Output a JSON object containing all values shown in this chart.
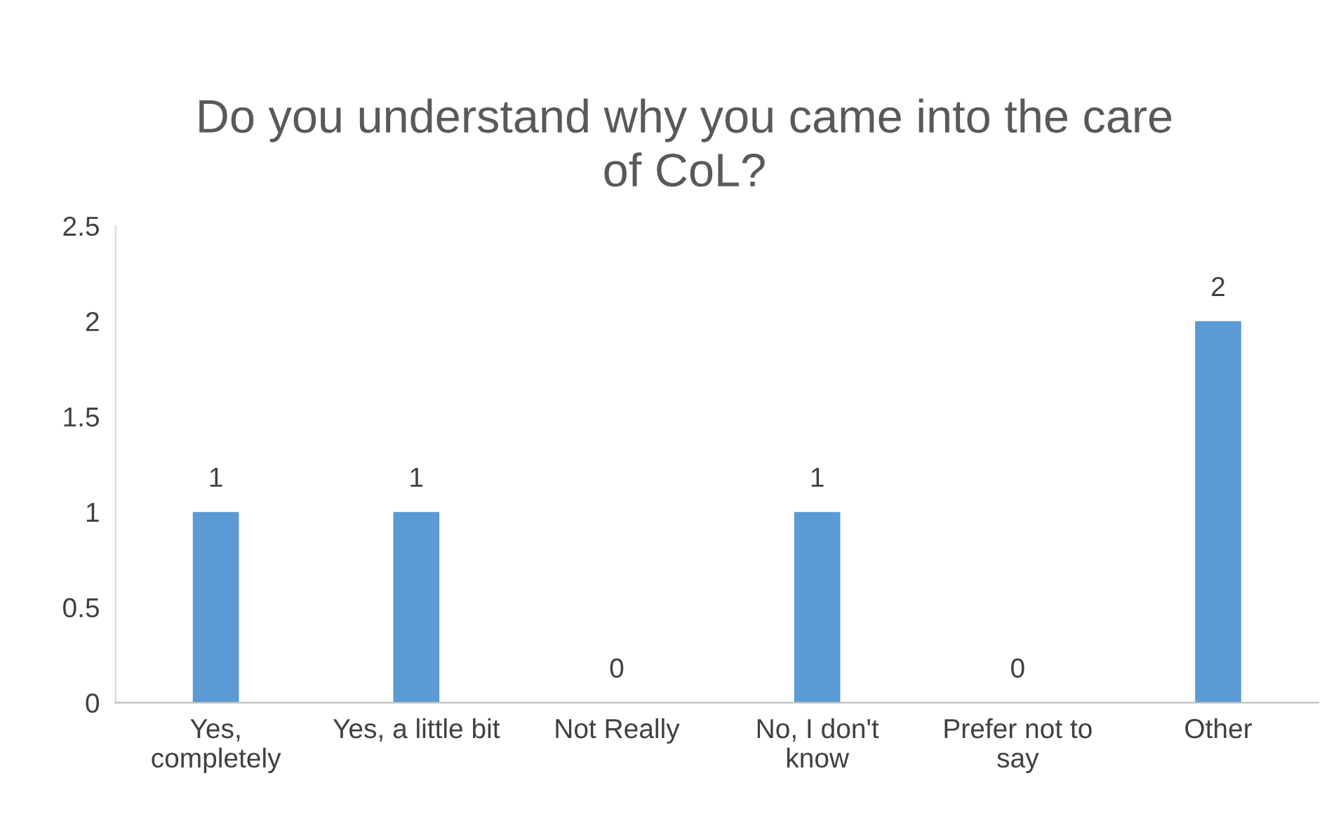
{
  "chart_data": {
    "type": "bar",
    "title": "Do you understand why you came into the care\nof CoL?",
    "categories": [
      "Yes,\ncompletely",
      "Yes, a little bit",
      "Not Really",
      "No, I don't\nknow",
      "Prefer not to\nsay",
      "Other"
    ],
    "values": [
      1,
      1,
      0,
      1,
      0,
      2
    ],
    "color": "#5b9bd5",
    "ylim": [
      0,
      2.5
    ],
    "yticks": [
      0,
      0.5,
      1,
      1.5,
      2,
      2.5
    ],
    "grid": false,
    "data_labels": true
  }
}
